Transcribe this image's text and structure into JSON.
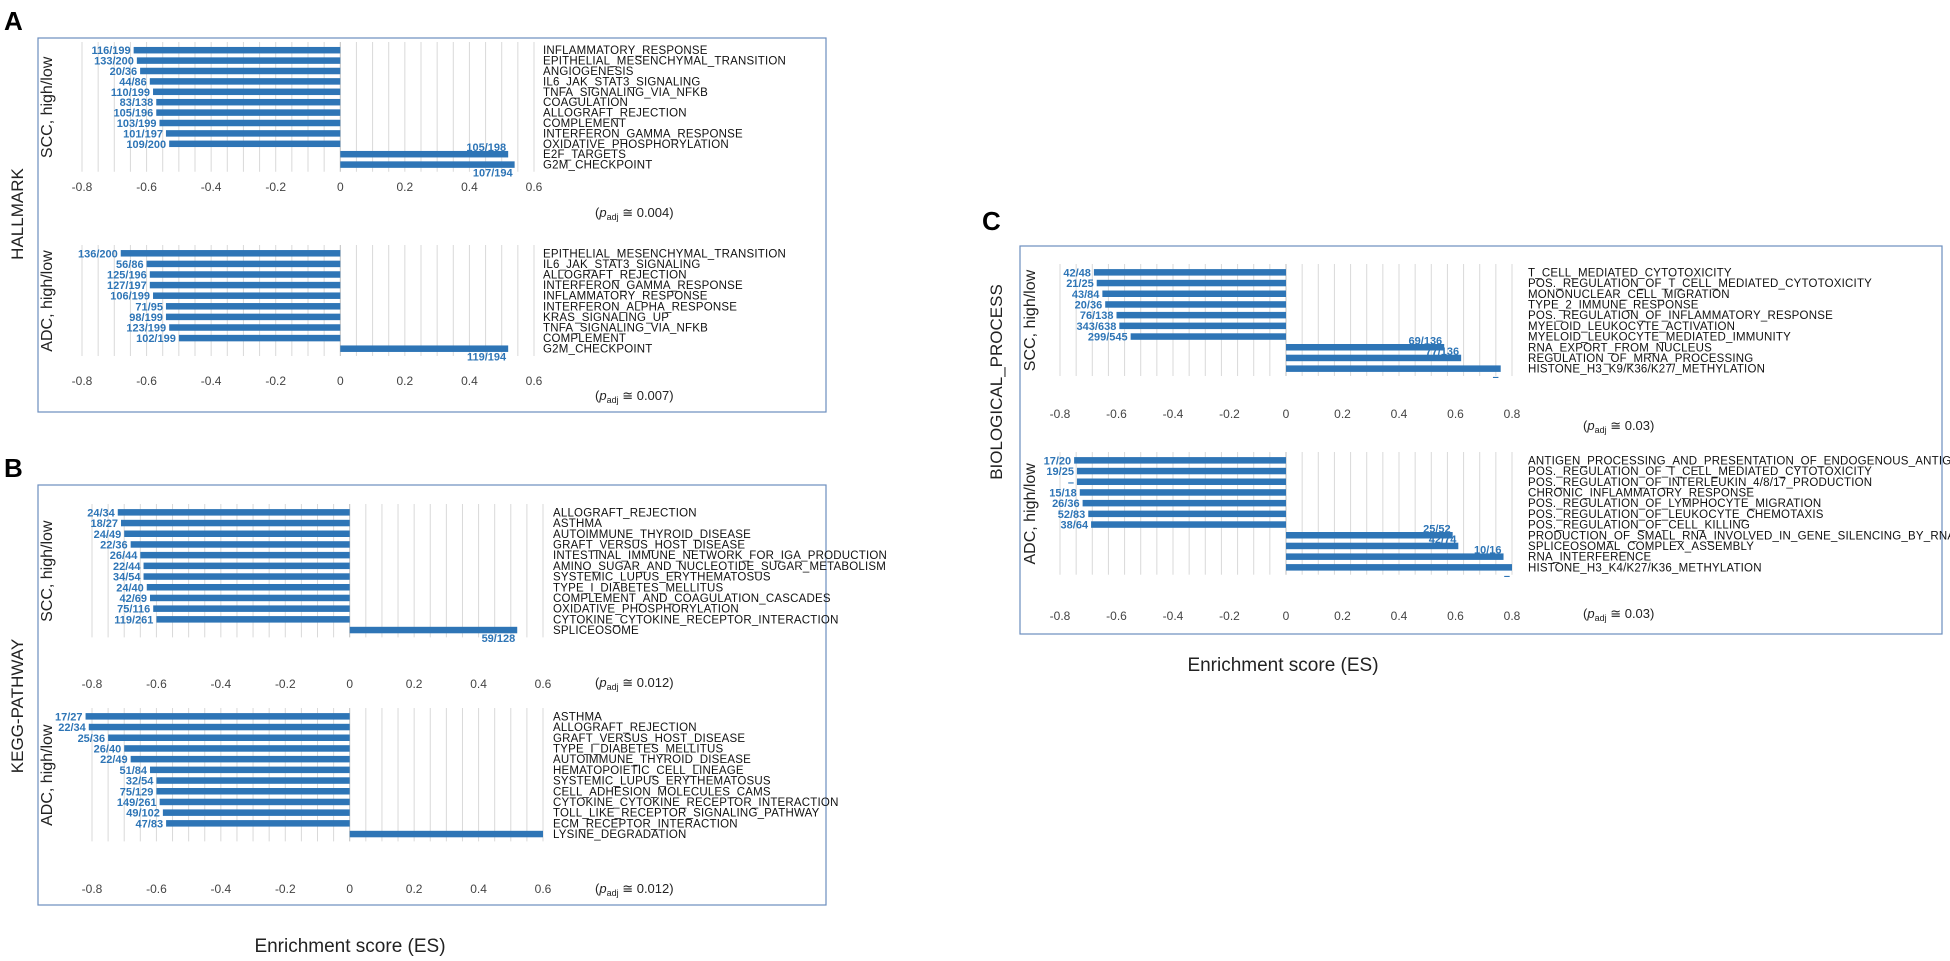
{
  "colors": {
    "bar": "#2e75b6",
    "count_text": "#2e75b6",
    "frame": "#6c8ebf",
    "grid": "#d9d9d9"
  },
  "panels": {
    "A": {
      "letter": "A",
      "group_label": "HALLMARK"
    },
    "B": {
      "letter": "B",
      "group_label": "KEGG-PATHWAY"
    },
    "C": {
      "letter": "C",
      "group_label": "BIOLOGICAL_PROCESS"
    }
  },
  "x_axis_title": "Enrichment score (ES)",
  "chart_data": [
    {
      "id": "A1",
      "type": "bar",
      "orientation": "horizontal",
      "title": "HALLMARK",
      "ylabel": "SCC, high/low",
      "xlabel": "Enrichment score (ES)",
      "xlim": [
        -0.8,
        0.6
      ],
      "ticks": [
        -0.8,
        -0.6,
        -0.4,
        -0.2,
        0,
        0.2,
        0.4,
        0.6
      ],
      "padj_text": "≅ 0.004",
      "categories": [
        "INFLAMMATORY_RESPONSE",
        "EPITHELIAL_MESENCHYMAL_TRANSITION",
        "ANGIOGENESIS",
        "IL6_JAK_STAT3_SIGNALING",
        "TNFA_SIGNALING_VIA_NFKB",
        "COAGULATION",
        "ALLOGRAFT_REJECTION",
        "COMPLEMENT",
        "INTERFERON_GAMMA_RESPONSE",
        "OXIDATIVE_PHOSPHORYLATION",
        "E2F_TARGETS",
        "G2M_CHECKPOINT"
      ],
      "values": [
        -0.64,
        -0.63,
        -0.62,
        -0.59,
        -0.58,
        -0.57,
        -0.57,
        -0.56,
        -0.54,
        -0.53,
        0.52,
        0.54
      ],
      "labels": [
        "116/199",
        "133/200",
        "20/36",
        "44/86",
        "110/199",
        "83/138",
        "105/196",
        "103/199",
        "101/197",
        "109/200",
        "105/198",
        "107/194"
      ]
    },
    {
      "id": "A2",
      "type": "bar",
      "orientation": "horizontal",
      "title": "HALLMARK",
      "ylabel": "ADC, high/low",
      "xlabel": "Enrichment score (ES)",
      "xlim": [
        -0.8,
        0.6
      ],
      "ticks": [
        -0.8,
        -0.6,
        -0.4,
        -0.2,
        0,
        0.2,
        0.4,
        0.6
      ],
      "padj_text": "≅ 0.007",
      "categories": [
        "EPITHELIAL_MESENCHYMAL_TRANSITION",
        "IL6_JAK_STAT3_SIGNALING",
        "ALLOGRAFT_REJECTION",
        "INTERFERON_GAMMA_RESPONSE",
        "INFLAMMATORY_RESPONSE",
        "INTERFERON_ALPHA_RESPONSE",
        "KRAS_SIGNALING_UP",
        "TNFA_SIGNALING_VIA_NFKB",
        "COMPLEMENT",
        "G2M_CHECKPOINT"
      ],
      "values": [
        -0.68,
        -0.6,
        -0.59,
        -0.59,
        -0.58,
        -0.54,
        -0.54,
        -0.53,
        -0.5,
        0.52
      ],
      "labels": [
        "136/200",
        "56/86",
        "125/196",
        "127/197",
        "106/199",
        "71/95",
        "98/199",
        "123/199",
        "102/199",
        "119/194"
      ]
    },
    {
      "id": "B1",
      "type": "bar",
      "orientation": "horizontal",
      "title": "KEGG-PATHWAY",
      "ylabel": "SCC, high/low",
      "xlabel": "Enrichment score (ES)",
      "xlim": [
        -0.8,
        0.6
      ],
      "ticks": [
        -0.8,
        -0.6,
        -0.4,
        -0.2,
        0,
        0.2,
        0.4,
        0.6
      ],
      "padj_text": "≅ 0.012",
      "categories": [
        "ALLOGRAFT_REJECTION",
        "ASTHMA",
        "AUTOIMMUNE_THYROID_DISEASE",
        "GRAFT_VERSUS_HOST_DISEASE",
        "INTESTINAL_IMMUNE_NETWORK_FOR_IGA_PRODUCTION",
        "AMINO_SUGAR_AND_NUCLEOTIDE_SUGAR_METABOLISM",
        "SYSTEMIC_LUPUS_ERYTHEMATOSUS",
        "TYPE_I_DIABETES_MELLITUS",
        "COMPLEMENT_AND_COAGULATION_CASCADES",
        "OXIDATIVE_PHOSPHORYLATION",
        "CYTOKINE_CYTOKINE_RECEPTOR_INTERACTION",
        "SPLICEOSOME"
      ],
      "values": [
        -0.72,
        -0.71,
        -0.7,
        -0.68,
        -0.65,
        -0.64,
        -0.64,
        -0.63,
        -0.62,
        -0.61,
        -0.6,
        0.52
      ],
      "labels": [
        "24/34",
        "18/27",
        "24/49",
        "22/36",
        "26/44",
        "22/44",
        "34/54",
        "24/40",
        "42/69",
        "75/116",
        "119/261",
        "59/128"
      ]
    },
    {
      "id": "B2",
      "type": "bar",
      "orientation": "horizontal",
      "title": "KEGG-PATHWAY",
      "ylabel": "ADC, high/low",
      "xlabel": "Enrichment score (ES)",
      "xlim": [
        -0.8,
        0.6
      ],
      "ticks": [
        -0.8,
        -0.6,
        -0.4,
        -0.2,
        0,
        0.2,
        0.4,
        0.6
      ],
      "padj_text": "≅ 0.012",
      "categories": [
        "ASTHMA",
        "ALLOGRAFT_REJECTION",
        "GRAFT_VERSUS_HOST_DISEASE",
        "TYPE_I_DIABETES_MELLITUS",
        "AUTOIMMUNE_THYROID_DISEASE",
        "HEMATOPOIETIC_CELL_LINEAGE",
        "SYSTEMIC_LUPUS_ERYTHEMATOSUS",
        "CELL_ADHESION_MOLECULES_CAMS",
        "CYTOKINE_CYTOKINE_RECEPTOR_INTERACTION",
        "TOLL_LIKE_RECEPTOR_SIGNALING_PATHWAY",
        "ECM_RECEPTOR_INTERACTION",
        "LYSINE_DEGRADATION"
      ],
      "values": [
        -0.82,
        -0.81,
        -0.75,
        -0.7,
        -0.68,
        -0.62,
        -0.6,
        -0.6,
        -0.59,
        -0.58,
        -0.57,
        0.6
      ],
      "labels": [
        "17/27",
        "22/34",
        "25/36",
        "26/40",
        "22/49",
        "51/84",
        "32/54",
        "75/129",
        "149/261",
        "49/102",
        "47/83",
        ""
      ]
    },
    {
      "id": "C1",
      "type": "bar",
      "orientation": "horizontal",
      "title": "BIOLOGICAL_PROCESS",
      "ylabel": "SCC, high/low",
      "xlabel": "Enrichment score (ES)",
      "xlim": [
        -0.8,
        0.8
      ],
      "ticks": [
        -0.8,
        -0.6,
        -0.4,
        -0.2,
        0,
        0.2,
        0.4,
        0.6,
        0.8
      ],
      "padj_text": "≅ 0.03",
      "categories": [
        "T_CELL_MEDIATED_CYTOTOXICITY",
        "POS._REGULATION_OF_T_CELL_MEDIATED_CYTOTOXICITY",
        "MONONUCLEAR_CELL_MIGRATION",
        "TYPE_2_IMMUNE_RESPONSE",
        "POS._REGULATION_OF_INFLAMMATORY_RESPONSE",
        "MYELOID_LEUKOCYTE_ACTIVATION",
        "MYELOID_LEUKOCYTE_MEDIATED_IMMUNITY",
        "RNA_EXPORT_FROM_NUCLEUS",
        "REGULATION_OF_MRNA_PROCESSING",
        "HISTONE_H3_K9/K36/K27/_METHYLATION"
      ],
      "values": [
        -0.68,
        -0.67,
        -0.65,
        -0.64,
        -0.6,
        -0.59,
        -0.55,
        0.56,
        0.62,
        0.76
      ],
      "labels": [
        "42/48",
        "21/25",
        "43/84",
        "20/36",
        "76/138",
        "343/638",
        "299/545",
        "69/136",
        "77/136",
        "–"
      ]
    },
    {
      "id": "C2",
      "type": "bar",
      "orientation": "horizontal",
      "title": "BIOLOGICAL_PROCESS",
      "ylabel": "ADC, high/low",
      "xlabel": "Enrichment score (ES)",
      "xlim": [
        -0.8,
        0.8
      ],
      "ticks": [
        -0.8,
        -0.6,
        -0.4,
        -0.2,
        0,
        0.2,
        0.4,
        0.6,
        0.8
      ],
      "padj_text": "≅ 0.03",
      "categories": [
        "ANTIGEN_PROCESSING_AND_PRESENTATION_OF_ENDOGENOUS_ANTIGEN",
        "POS._REGULATION_OF_T_CELL_MEDIATED_CYTOTOXICITY",
        "POS._REGULATION_OF_INTERLEUKIN_4/8/17_PRODUCTION",
        "CHRONIC_INFLAMMATORY_RESPONSE",
        "POS._REGULATION_OF_LYMPHOCYTE_MIGRATION",
        "POS._REGULATION_OF_LEUKOCYTE_CHEMOTAXIS",
        "POS._REGULATION_OF_CELL_KILLING",
        "PRODUCTION_OF_SMALL_RNA_INVOLVED_IN_GENE_SILENCING_BY_RNA",
        "SPLICEOSOMAL_COMPLEX_ASSEMBLY",
        "RNA_INTERFERENCE",
        "HISTONE_H3_K4/K27/K36_METHYLATION"
      ],
      "values": [
        -0.75,
        -0.74,
        -0.74,
        -0.73,
        -0.72,
        -0.7,
        -0.69,
        0.59,
        0.61,
        0.77,
        0.8
      ],
      "labels": [
        "17/20",
        "19/25",
        "–",
        "15/18",
        "26/36",
        "52/83",
        "38/64",
        "25/52",
        "42/74",
        "10/16",
        "–"
      ]
    }
  ]
}
